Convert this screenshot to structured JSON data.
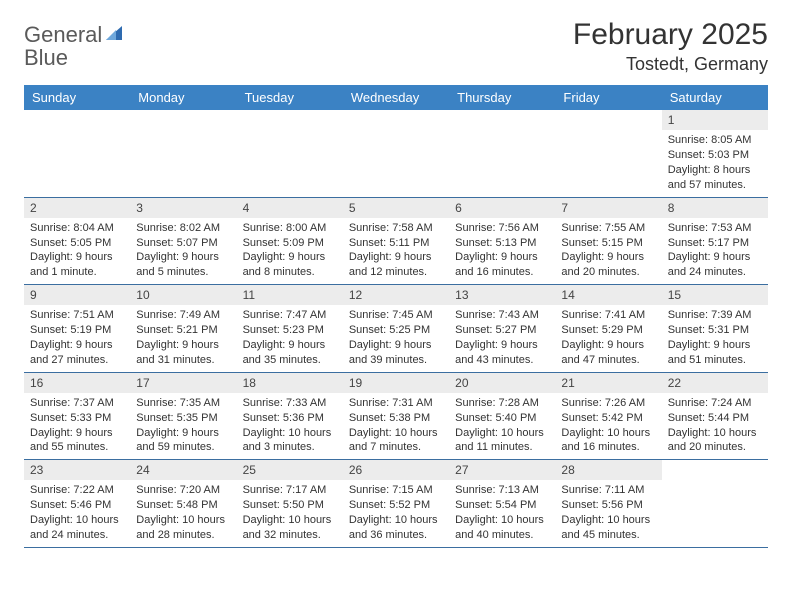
{
  "branding": {
    "logo_part1": "General",
    "logo_part2": "Blue",
    "logo_color_gray": "#5a5a5a",
    "logo_color_blue": "#3b7fc4"
  },
  "header": {
    "month_title": "February 2025",
    "location": "Tostedt, Germany"
  },
  "styling": {
    "header_bg": "#3b82c4",
    "header_text": "#ffffff",
    "daynum_bg": "#ececec",
    "week_border": "#3b6ea0",
    "body_text": "#333333",
    "page_bg": "#ffffff",
    "title_fontsize": 30,
    "location_fontsize": 18,
    "dayheader_fontsize": 13,
    "cell_fontsize": 11
  },
  "day_names": [
    "Sunday",
    "Monday",
    "Tuesday",
    "Wednesday",
    "Thursday",
    "Friday",
    "Saturday"
  ],
  "weeks": [
    [
      {
        "empty": true
      },
      {
        "empty": true
      },
      {
        "empty": true
      },
      {
        "empty": true
      },
      {
        "empty": true
      },
      {
        "empty": true
      },
      {
        "day": "1",
        "sunrise": "Sunrise: 8:05 AM",
        "sunset": "Sunset: 5:03 PM",
        "daylight1": "Daylight: 8 hours",
        "daylight2": "and 57 minutes."
      }
    ],
    [
      {
        "day": "2",
        "sunrise": "Sunrise: 8:04 AM",
        "sunset": "Sunset: 5:05 PM",
        "daylight1": "Daylight: 9 hours",
        "daylight2": "and 1 minute."
      },
      {
        "day": "3",
        "sunrise": "Sunrise: 8:02 AM",
        "sunset": "Sunset: 5:07 PM",
        "daylight1": "Daylight: 9 hours",
        "daylight2": "and 5 minutes."
      },
      {
        "day": "4",
        "sunrise": "Sunrise: 8:00 AM",
        "sunset": "Sunset: 5:09 PM",
        "daylight1": "Daylight: 9 hours",
        "daylight2": "and 8 minutes."
      },
      {
        "day": "5",
        "sunrise": "Sunrise: 7:58 AM",
        "sunset": "Sunset: 5:11 PM",
        "daylight1": "Daylight: 9 hours",
        "daylight2": "and 12 minutes."
      },
      {
        "day": "6",
        "sunrise": "Sunrise: 7:56 AM",
        "sunset": "Sunset: 5:13 PM",
        "daylight1": "Daylight: 9 hours",
        "daylight2": "and 16 minutes."
      },
      {
        "day": "7",
        "sunrise": "Sunrise: 7:55 AM",
        "sunset": "Sunset: 5:15 PM",
        "daylight1": "Daylight: 9 hours",
        "daylight2": "and 20 minutes."
      },
      {
        "day": "8",
        "sunrise": "Sunrise: 7:53 AM",
        "sunset": "Sunset: 5:17 PM",
        "daylight1": "Daylight: 9 hours",
        "daylight2": "and 24 minutes."
      }
    ],
    [
      {
        "day": "9",
        "sunrise": "Sunrise: 7:51 AM",
        "sunset": "Sunset: 5:19 PM",
        "daylight1": "Daylight: 9 hours",
        "daylight2": "and 27 minutes."
      },
      {
        "day": "10",
        "sunrise": "Sunrise: 7:49 AM",
        "sunset": "Sunset: 5:21 PM",
        "daylight1": "Daylight: 9 hours",
        "daylight2": "and 31 minutes."
      },
      {
        "day": "11",
        "sunrise": "Sunrise: 7:47 AM",
        "sunset": "Sunset: 5:23 PM",
        "daylight1": "Daylight: 9 hours",
        "daylight2": "and 35 minutes."
      },
      {
        "day": "12",
        "sunrise": "Sunrise: 7:45 AM",
        "sunset": "Sunset: 5:25 PM",
        "daylight1": "Daylight: 9 hours",
        "daylight2": "and 39 minutes."
      },
      {
        "day": "13",
        "sunrise": "Sunrise: 7:43 AM",
        "sunset": "Sunset: 5:27 PM",
        "daylight1": "Daylight: 9 hours",
        "daylight2": "and 43 minutes."
      },
      {
        "day": "14",
        "sunrise": "Sunrise: 7:41 AM",
        "sunset": "Sunset: 5:29 PM",
        "daylight1": "Daylight: 9 hours",
        "daylight2": "and 47 minutes."
      },
      {
        "day": "15",
        "sunrise": "Sunrise: 7:39 AM",
        "sunset": "Sunset: 5:31 PM",
        "daylight1": "Daylight: 9 hours",
        "daylight2": "and 51 minutes."
      }
    ],
    [
      {
        "day": "16",
        "sunrise": "Sunrise: 7:37 AM",
        "sunset": "Sunset: 5:33 PM",
        "daylight1": "Daylight: 9 hours",
        "daylight2": "and 55 minutes."
      },
      {
        "day": "17",
        "sunrise": "Sunrise: 7:35 AM",
        "sunset": "Sunset: 5:35 PM",
        "daylight1": "Daylight: 9 hours",
        "daylight2": "and 59 minutes."
      },
      {
        "day": "18",
        "sunrise": "Sunrise: 7:33 AM",
        "sunset": "Sunset: 5:36 PM",
        "daylight1": "Daylight: 10 hours",
        "daylight2": "and 3 minutes."
      },
      {
        "day": "19",
        "sunrise": "Sunrise: 7:31 AM",
        "sunset": "Sunset: 5:38 PM",
        "daylight1": "Daylight: 10 hours",
        "daylight2": "and 7 minutes."
      },
      {
        "day": "20",
        "sunrise": "Sunrise: 7:28 AM",
        "sunset": "Sunset: 5:40 PM",
        "daylight1": "Daylight: 10 hours",
        "daylight2": "and 11 minutes."
      },
      {
        "day": "21",
        "sunrise": "Sunrise: 7:26 AM",
        "sunset": "Sunset: 5:42 PM",
        "daylight1": "Daylight: 10 hours",
        "daylight2": "and 16 minutes."
      },
      {
        "day": "22",
        "sunrise": "Sunrise: 7:24 AM",
        "sunset": "Sunset: 5:44 PM",
        "daylight1": "Daylight: 10 hours",
        "daylight2": "and 20 minutes."
      }
    ],
    [
      {
        "day": "23",
        "sunrise": "Sunrise: 7:22 AM",
        "sunset": "Sunset: 5:46 PM",
        "daylight1": "Daylight: 10 hours",
        "daylight2": "and 24 minutes."
      },
      {
        "day": "24",
        "sunrise": "Sunrise: 7:20 AM",
        "sunset": "Sunset: 5:48 PM",
        "daylight1": "Daylight: 10 hours",
        "daylight2": "and 28 minutes."
      },
      {
        "day": "25",
        "sunrise": "Sunrise: 7:17 AM",
        "sunset": "Sunset: 5:50 PM",
        "daylight1": "Daylight: 10 hours",
        "daylight2": "and 32 minutes."
      },
      {
        "day": "26",
        "sunrise": "Sunrise: 7:15 AM",
        "sunset": "Sunset: 5:52 PM",
        "daylight1": "Daylight: 10 hours",
        "daylight2": "and 36 minutes."
      },
      {
        "day": "27",
        "sunrise": "Sunrise: 7:13 AM",
        "sunset": "Sunset: 5:54 PM",
        "daylight1": "Daylight: 10 hours",
        "daylight2": "and 40 minutes."
      },
      {
        "day": "28",
        "sunrise": "Sunrise: 7:11 AM",
        "sunset": "Sunset: 5:56 PM",
        "daylight1": "Daylight: 10 hours",
        "daylight2": "and 45 minutes."
      },
      {
        "empty": true
      }
    ]
  ]
}
